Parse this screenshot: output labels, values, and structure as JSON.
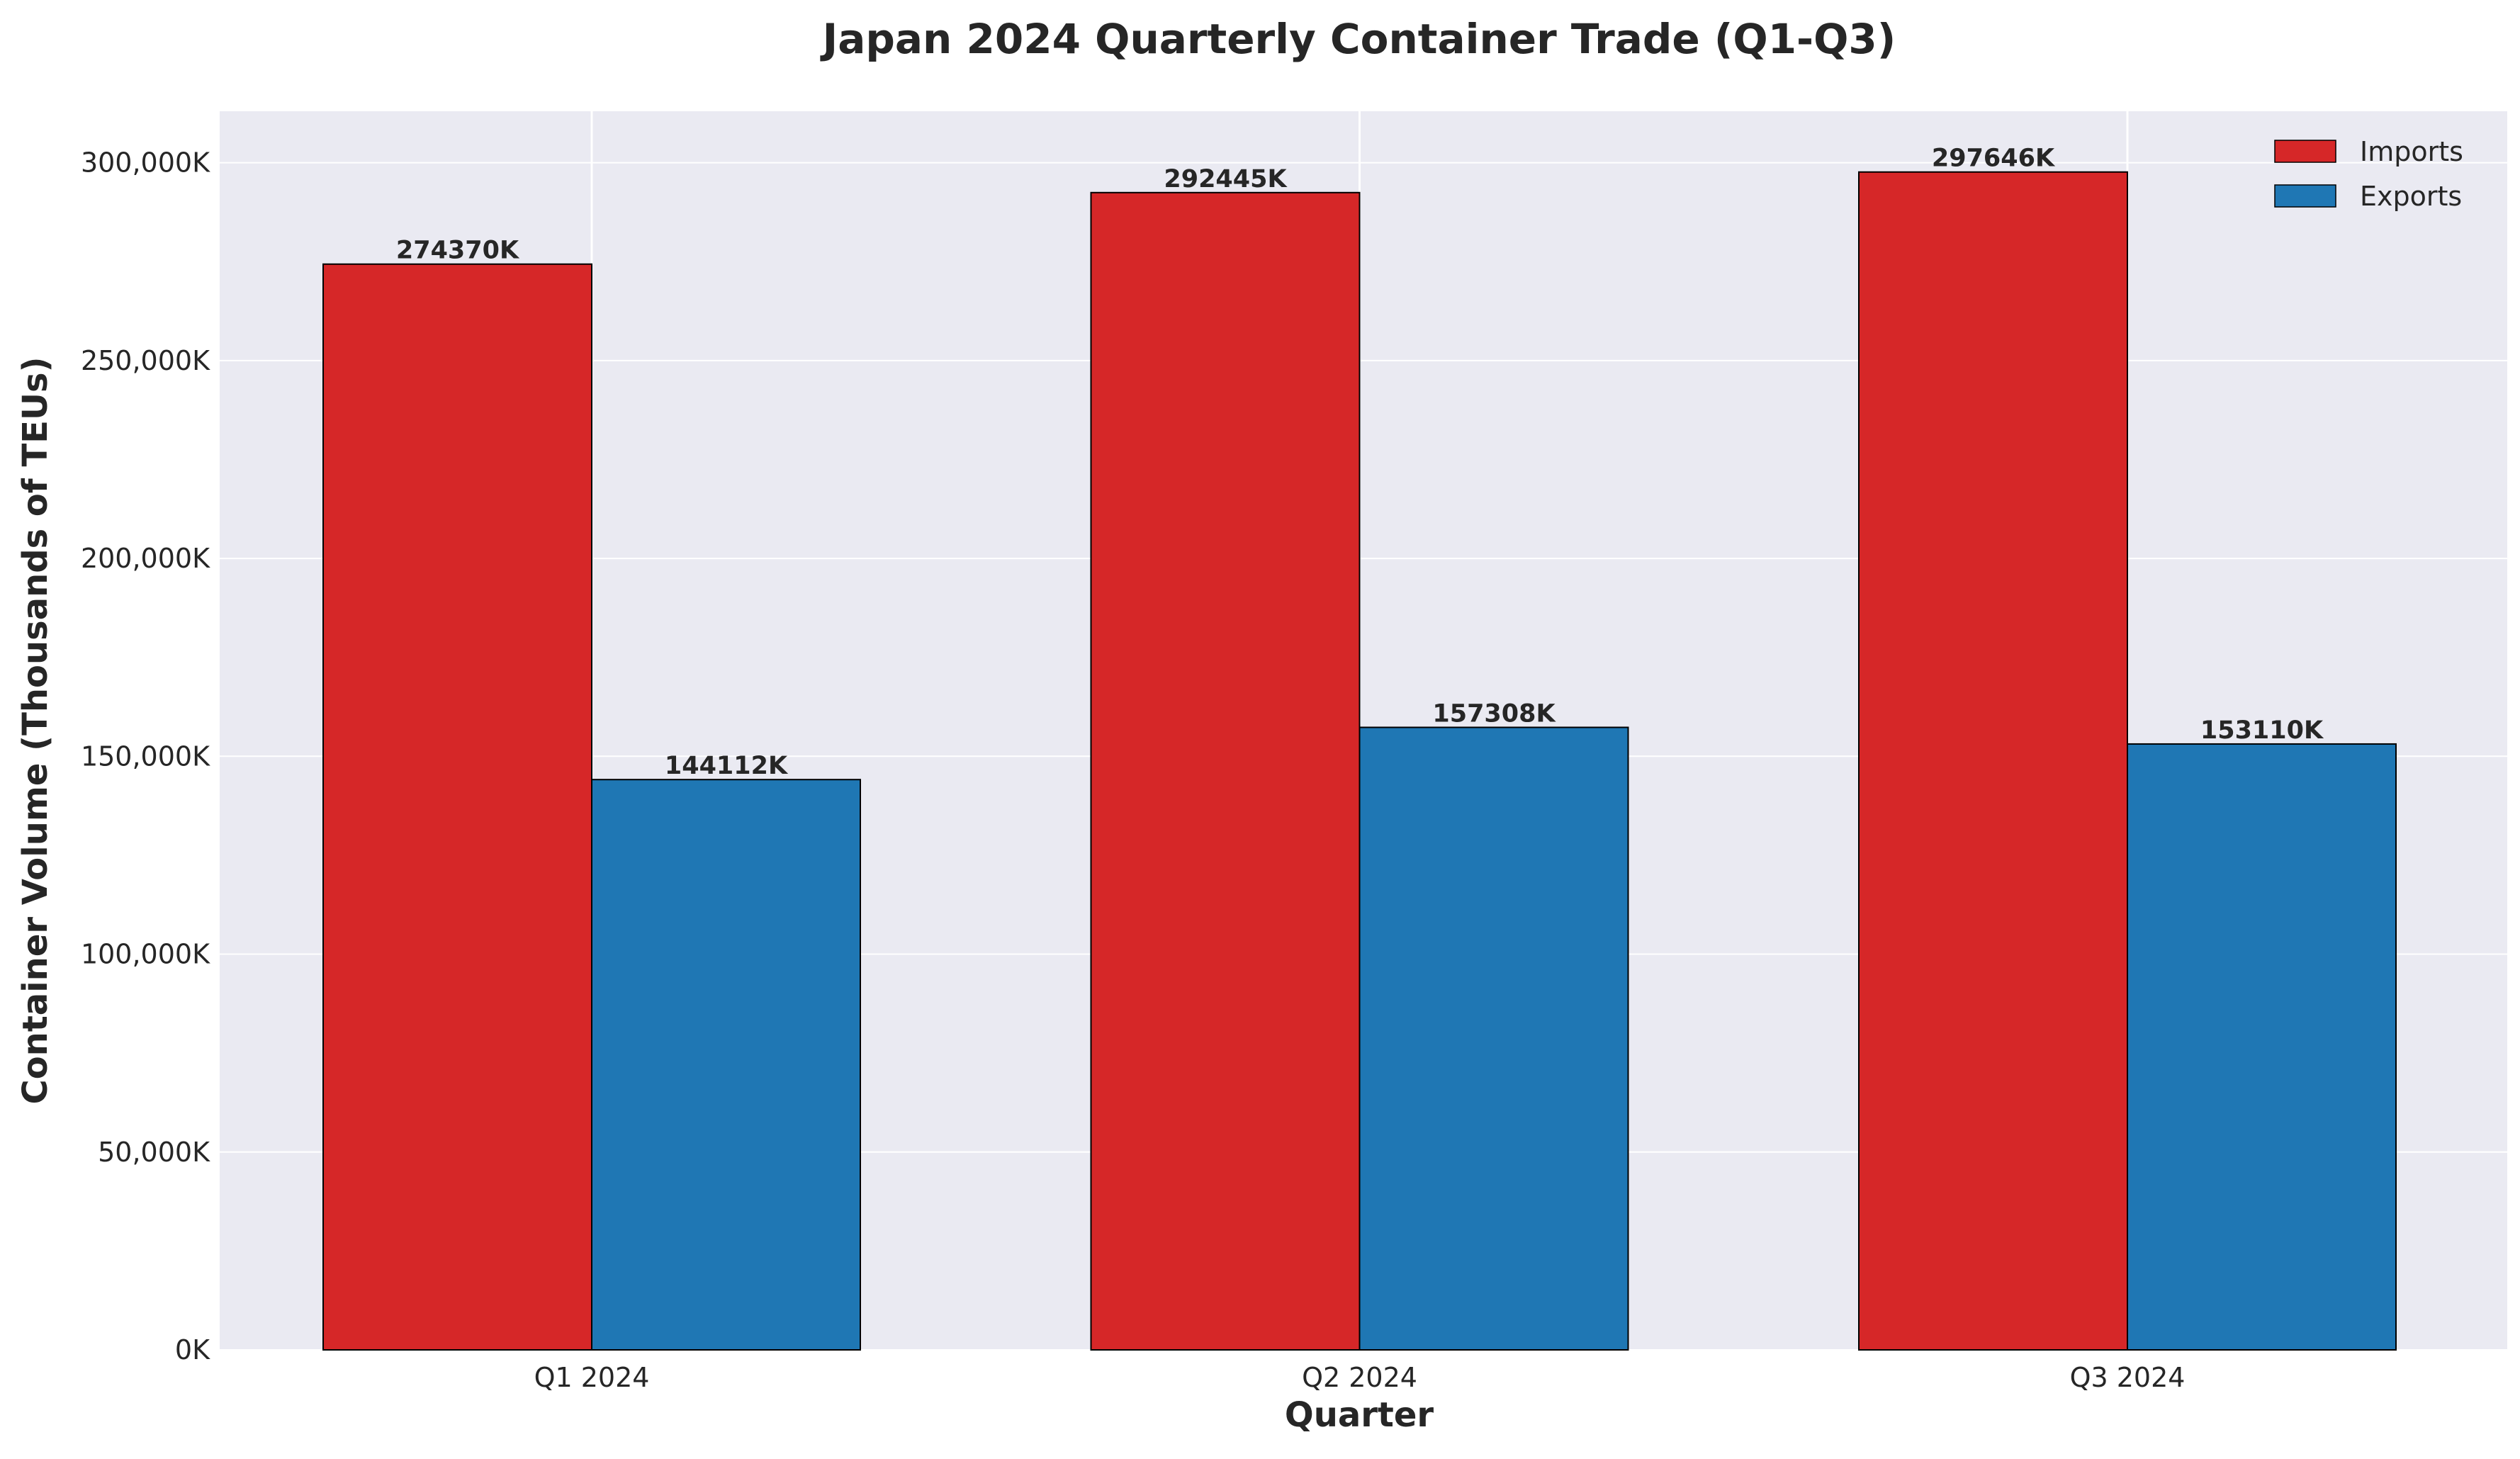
{
  "chart_data": {
    "type": "bar",
    "title": "Japan 2024 Quarterly Container Trade (Q1-Q3)",
    "xlabel": "Quarter",
    "ylabel": "Container Volume (Thousands of TEUs)",
    "categories": [
      "Q1 2024",
      "Q2 2024",
      "Q3 2024"
    ],
    "series": [
      {
        "name": "Imports",
        "color": "#d62728",
        "values": [
          274370,
          292445,
          297646
        ],
        "labels": [
          "274370K",
          "292445K",
          "297646K"
        ]
      },
      {
        "name": "Exports",
        "color": "#1f77b4",
        "values": [
          144112,
          157308,
          153110
        ],
        "labels": [
          "144112K",
          "157308K",
          "153110K"
        ]
      }
    ],
    "ylim": [
      0,
      313000
    ],
    "yticks": [
      0,
      50000,
      100000,
      150000,
      200000,
      250000,
      300000
    ],
    "ytick_labels": [
      "0K",
      "50,000K",
      "100,000K",
      "150,000K",
      "200,000K",
      "250,000K",
      "300,000K"
    ],
    "grid": true,
    "legend_position": "top-right",
    "background_color": "#eaeaf2",
    "grid_color": "#ffffff"
  }
}
